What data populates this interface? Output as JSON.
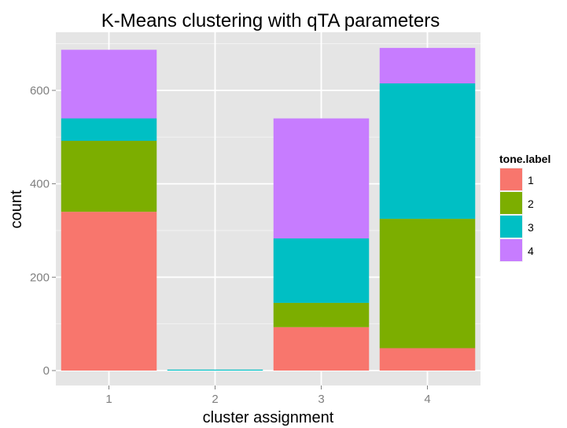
{
  "chart_data": {
    "type": "bar",
    "stacked": true,
    "title": "K-Means clustering with qTA parameters",
    "xlabel": "cluster assignment",
    "ylabel": "count",
    "categories": [
      "1",
      "2",
      "3",
      "4"
    ],
    "ylim": [
      0,
      690
    ],
    "yticks": [
      0,
      200,
      400,
      600
    ],
    "grid": true,
    "legend": {
      "title": "tone.label",
      "position": "right"
    },
    "series": [
      {
        "name": "1",
        "color": "#F8766D",
        "values": [
          340,
          0,
          93,
          48
        ]
      },
      {
        "name": "2",
        "color": "#7CAE00",
        "values": [
          152,
          0,
          52,
          277
        ]
      },
      {
        "name": "3",
        "color": "#00BFC4",
        "values": [
          48,
          2,
          138,
          290
        ]
      },
      {
        "name": "4",
        "color": "#C77CFF",
        "values": [
          147,
          0,
          257,
          76
        ]
      }
    ]
  }
}
